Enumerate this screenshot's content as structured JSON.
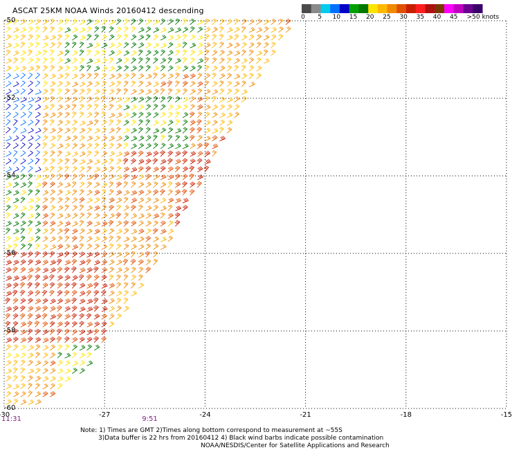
{
  "header": {
    "title": "ASCAT 25KM NOAA Winds 20160412 descending"
  },
  "color_scale": {
    "labels": [
      "0",
      "5",
      "10",
      "15",
      "20",
      "25",
      "30",
      "35",
      "40",
      "45",
      ">50 knots"
    ],
    "colors": [
      "#4a4a4a",
      "#8a8a8a",
      "#00ccee",
      "#0070ff",
      "#0000c8",
      "#00a000",
      "#007800",
      "#ffe400",
      "#ffb800",
      "#f08a00",
      "#e05000",
      "#c81e00",
      "#ff1e1e",
      "#b01010",
      "#7a3800",
      "#ff00ff",
      "#c000c0",
      "#6a0090",
      "#3a006a"
    ]
  },
  "chart_data": {
    "type": "scatter",
    "title": "ASCAT 25KM NOAA Winds 20160412 descending",
    "xlabel": "",
    "ylabel": "",
    "x_ticks": [
      "-30",
      "-27",
      "-24",
      "-21",
      "-18",
      "-15"
    ],
    "y_ticks": [
      "-50",
      "-52",
      "-54",
      "-56",
      "-58",
      "-60"
    ],
    "xlim": [
      -30,
      -15
    ],
    "ylim": [
      -60,
      -50
    ],
    "grid": true,
    "unit": "knots",
    "time_labels": [
      {
        "text": "11:31",
        "lon": -30
      },
      {
        "text": "9:51",
        "lon": -25.8
      }
    ],
    "swath": {
      "edge_lon": [
        -21.3,
        -22.8,
        -24,
        -25.3,
        -26.4,
        -27.6,
        -28.4,
        -29.2
      ],
      "edge_lat": [
        -50,
        -52,
        -54,
        -56,
        -57.5,
        -59,
        -59.6,
        -60
      ]
    },
    "wind_zones": [
      {
        "lat_range": [
          -50.0,
          -51.5
        ],
        "knots": 20,
        "lon_range": [
          -30,
          -28.2
        ]
      },
      {
        "lat_range": [
          -50.0,
          -51.5
        ],
        "knots": 17,
        "lon_range": [
          -28.2,
          -24.2
        ]
      },
      {
        "lat_range": [
          -50.0,
          -53.0
        ],
        "knots": 22,
        "lon_range": [
          -24.2,
          -21.8
        ]
      },
      {
        "lat_range": [
          -51.5,
          -54.0
        ],
        "knots": 10,
        "lon_range": [
          -30,
          -29.0
        ]
      },
      {
        "lat_range": [
          -52.0,
          -54.0
        ],
        "knots": 22,
        "lon_range": [
          -29.0,
          -25.5
        ]
      },
      {
        "lat_range": [
          -52.0,
          -53.5
        ],
        "knots": 17,
        "lon_range": [
          -26.5,
          -24.5
        ]
      },
      {
        "lat_range": [
          -53.5,
          -55.5
        ],
        "knots": 28,
        "lon_range": [
          -26.5,
          -23.8
        ]
      },
      {
        "lat_range": [
          -54.0,
          -56.0
        ],
        "knots": 17,
        "lon_range": [
          -30,
          -29.0
        ]
      },
      {
        "lat_range": [
          -54.0,
          -57.0
        ],
        "knots": 24,
        "lon_range": [
          -29.0,
          -25.0
        ]
      },
      {
        "lat_range": [
          -56.0,
          -58.5
        ],
        "knots": 28,
        "lon_range": [
          -30,
          -27.0
        ]
      },
      {
        "lat_range": [
          -57.0,
          -59.0
        ],
        "knots": 22,
        "lon_range": [
          -27.0,
          -26.0
        ]
      },
      {
        "lat_range": [
          -58.5,
          -60.0
        ],
        "knots": 18,
        "lon_range": [
          -28.5,
          -27.0
        ]
      }
    ]
  },
  "notes": {
    "line1": "Note: 1) Times are GMT 2)Times along bottom correspond to measurement at ~55S",
    "line2": "3)Data buffer is 22 hrs from 20160412 4) Black wind barbs indicate possible contamination",
    "line3": "NOAA/NESDIS/Center for Satellite Applications and Research"
  }
}
